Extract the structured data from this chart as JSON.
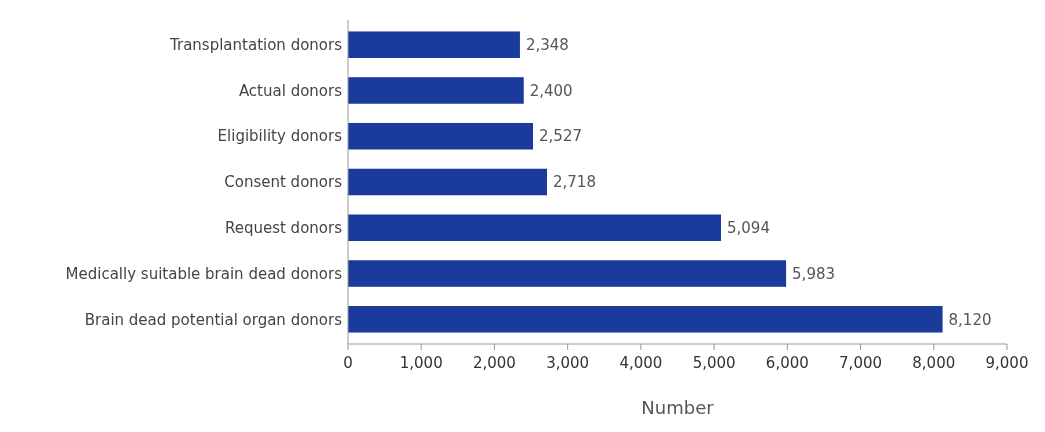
{
  "chart_data": {
    "type": "bar",
    "orientation": "horizontal",
    "categories": [
      "Transplantation donors",
      "Actual donors",
      "Eligibility donors",
      "Consent donors",
      "Request donors",
      "Medically suitable brain dead donors",
      "Brain dead potential organ donors"
    ],
    "values": [
      2348,
      2400,
      2527,
      2718,
      5094,
      5983,
      8120
    ],
    "color": "#1a3a9c",
    "xlabel": "Number",
    "xlim": [
      0,
      9000
    ],
    "xticks": [
      {
        "value": 0,
        "label": "0"
      },
      {
        "value": 1000,
        "label": "1,000"
      },
      {
        "value": 2000,
        "label": "2,000"
      },
      {
        "value": 3000,
        "label": "3,000"
      },
      {
        "value": 4000,
        "label": "4,000"
      },
      {
        "value": 5000,
        "label": "5,000"
      },
      {
        "value": 6000,
        "label": "6,000"
      },
      {
        "value": 7000,
        "label": "7,000"
      },
      {
        "value": 8000,
        "label": "8,000"
      },
      {
        "value": 9000,
        "label": "9,000"
      }
    ],
    "value_labels": [
      "2,348",
      "2,400",
      "2,527",
      "2,718",
      "5,094",
      "5,983",
      "8,120"
    ],
    "grid": false
  }
}
